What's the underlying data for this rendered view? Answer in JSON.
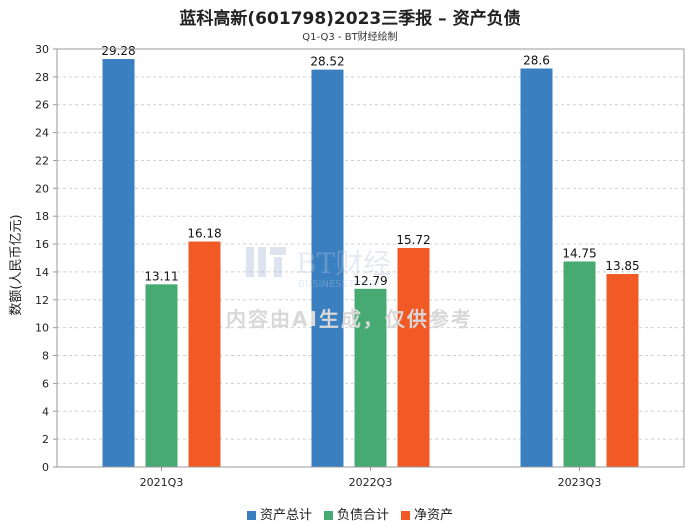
{
  "chart_data": {
    "type": "bar",
    "title": "蓝科高新(601798)2023三季报 – 资产负债",
    "subtitle": "Q1-Q3 - BT财经绘制",
    "ylabel": "数额(人民币亿元)",
    "xlabel": "",
    "categories": [
      "2021Q3",
      "2022Q3",
      "2023Q3"
    ],
    "ylim": [
      0,
      30
    ],
    "yticks": [
      0,
      2,
      4,
      6,
      8,
      10,
      12,
      14,
      16,
      18,
      20,
      22,
      24,
      26,
      28,
      30
    ],
    "grid": true,
    "legend_position": "bottom",
    "series": [
      {
        "name": "资产总计",
        "color": "#3a7fc0",
        "values": [
          29.28,
          28.52,
          28.6
        ]
      },
      {
        "name": "负债合计",
        "color": "#47aa72",
        "values": [
          13.11,
          12.79,
          14.75
        ]
      },
      {
        "name": "净资产",
        "color": "#f15a24",
        "values": [
          16.18,
          15.72,
          13.85
        ]
      }
    ]
  },
  "watermark": {
    "logo_text": "BT财经",
    "logo_sub": "BUSINESSTIMES",
    "text": "内容由AI生成，仅供参考"
  }
}
